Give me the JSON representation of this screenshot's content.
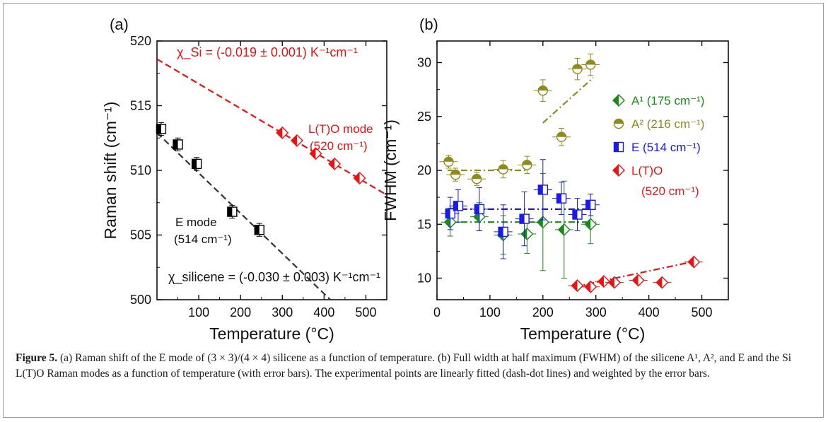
{
  "figure": {
    "caption_label": "Figure 5.",
    "caption_text": " (a) Raman shift of the E mode of (3 × 3)/(4 × 4) silicene as a function of temperature. (b) Full width at half maximum (FWHM) of the silicene A¹, A², and E and the Si L(T)O Raman modes as a function of temperature (with error bars). The experimental points are linearly fitted (dash-dot lines) and weighted by the error bars."
  },
  "chart_data": [
    {
      "panel_label": "(a)",
      "type": "scatter",
      "xlabel": "Temperature (°C)",
      "ylabel": "Raman shift (cm⁻¹)",
      "xlim": [
        0,
        550
      ],
      "ylim": [
        500,
        520
      ],
      "xticks": [
        100,
        200,
        300,
        400,
        500
      ],
      "yticks": [
        500,
        505,
        510,
        515,
        520
      ],
      "series": [
        {
          "name": "E mode (514 cm⁻¹)",
          "label_line1": "E mode",
          "label_line2": "(514 cm⁻¹)",
          "marker": "half-filled-square",
          "color": "#000000",
          "points": [
            {
              "x": 10,
              "y": 513.2,
              "yerr": 0.5
            },
            {
              "x": 50,
              "y": 512.0,
              "yerr": 0.5
            },
            {
              "x": 95,
              "y": 510.5,
              "yerr": 0.5
            },
            {
              "x": 180,
              "y": 506.8,
              "yerr": 0.5
            },
            {
              "x": 245,
              "y": 505.4,
              "yerr": 0.5
            }
          ]
        },
        {
          "name": "L(T)O mode (520 cm⁻¹)",
          "label_line1": "L(T)O mode",
          "label_line2": "(520 cm⁻¹)",
          "marker": "half-filled-diamond",
          "color": "#ee1111",
          "points": [
            {
              "x": 300,
              "y": 512.9
            },
            {
              "x": 335,
              "y": 512.3
            },
            {
              "x": 380,
              "y": 511.3
            },
            {
              "x": 425,
              "y": 510.5
            },
            {
              "x": 485,
              "y": 509.4
            }
          ]
        }
      ],
      "fits": [
        {
          "series": "E mode",
          "color": "#333333",
          "x": [
            0,
            415
          ],
          "y": [
            512.9,
            500.0
          ],
          "annotation": "χ_silicene = (-0.030 ± 0.003) K⁻¹cm⁻¹"
        },
        {
          "series": "L(T)O mode",
          "color": "#ee1111",
          "x": [
            0,
            550
          ],
          "y": [
            518.6,
            508.1
          ],
          "annotation": "χ_Si = (-0.019 ± 0.001) K⁻¹cm⁻¹"
        }
      ]
    },
    {
      "panel_label": "(b)",
      "type": "scatter",
      "xlabel": "Temperature (°C)",
      "ylabel": "FWHM (cm⁻¹)",
      "xlim": [
        0,
        550
      ],
      "ylim": [
        8,
        32
      ],
      "xticks": [
        0,
        100,
        200,
        300,
        400,
        500
      ],
      "yticks": [
        10,
        15,
        20,
        25,
        30
      ],
      "series": [
        {
          "name": "A¹ (175 cm⁻¹)",
          "marker": "half-filled-diamond",
          "color": "#1a8a1a",
          "points": [
            {
              "x": 25,
              "y": 15.2,
              "yerr": 1.3
            },
            {
              "x": 80,
              "y": 15.7,
              "yerr": 1.3
            },
            {
              "x": 125,
              "y": 14.0,
              "yerr": 1.8
            },
            {
              "x": 170,
              "y": 14.1,
              "yerr": 1.8
            },
            {
              "x": 200,
              "y": 15.2,
              "yerr": 4.5
            },
            {
              "x": 240,
              "y": 14.5,
              "yerr": 4.5
            },
            {
              "x": 290,
              "y": 15.0,
              "yerr": 1.8
            }
          ]
        },
        {
          "name": "A² (216 cm⁻¹)",
          "marker": "half-filled-circle",
          "color": "#8f8a1c",
          "points": [
            {
              "x": 22,
              "y": 20.8,
              "yerr": 0.6
            },
            {
              "x": 35,
              "y": 19.6,
              "yerr": 0.6
            },
            {
              "x": 75,
              "y": 19.2,
              "yerr": 0.6
            },
            {
              "x": 125,
              "y": 20.1,
              "yerr": 0.8
            },
            {
              "x": 170,
              "y": 20.5,
              "yerr": 0.8
            },
            {
              "x": 200,
              "y": 27.4,
              "yerr": 1.0
            },
            {
              "x": 235,
              "y": 23.1,
              "yerr": 0.8
            },
            {
              "x": 265,
              "y": 29.4,
              "yerr": 1.0
            },
            {
              "x": 290,
              "y": 29.8,
              "yerr": 1.0
            }
          ]
        },
        {
          "name": "E (514 cm⁻¹)",
          "marker": "half-filled-square",
          "color": "#1a1aee",
          "points": [
            {
              "x": 25,
              "y": 16.0,
              "yerr": 1.5
            },
            {
              "x": 40,
              "y": 16.7,
              "yerr": 1.5
            },
            {
              "x": 80,
              "y": 16.4,
              "yerr": 2.0
            },
            {
              "x": 125,
              "y": 14.3,
              "yerr": 2.5
            },
            {
              "x": 165,
              "y": 15.5,
              "yerr": 2.5
            },
            {
              "x": 200,
              "y": 18.2,
              "yerr": 2.8
            },
            {
              "x": 235,
              "y": 17.4,
              "yerr": 1.5
            },
            {
              "x": 265,
              "y": 15.9,
              "yerr": 1.5
            },
            {
              "x": 290,
              "y": 16.8,
              "yerr": 1.0
            }
          ]
        },
        {
          "name": "L(T)O (520 cm⁻¹)",
          "label_line1": "L(T)O",
          "label_line2": "(520 cm⁻¹)",
          "marker": "half-filled-diamond",
          "color": "#ee1111",
          "points": [
            {
              "x": 265,
              "y": 9.3
            },
            {
              "x": 290,
              "y": 9.2
            },
            {
              "x": 315,
              "y": 9.7
            },
            {
              "x": 335,
              "y": 9.6
            },
            {
              "x": 380,
              "y": 9.8
            },
            {
              "x": 425,
              "y": 9.6
            },
            {
              "x": 485,
              "y": 11.5
            }
          ]
        }
      ],
      "fits": [
        {
          "series": "A¹",
          "color": "#1a8a1a",
          "x": [
            20,
            300
          ],
          "y": [
            15.2,
            15.2
          ]
        },
        {
          "series": "A² low",
          "color": "#8f8a1c",
          "x": [
            20,
            170
          ],
          "y": [
            20.0,
            20.0
          ]
        },
        {
          "series": "A² high",
          "color": "#8f8a1c",
          "x": [
            200,
            295
          ],
          "y": [
            24.4,
            28.6
          ]
        },
        {
          "series": "E",
          "color": "#1a1aee",
          "x": [
            20,
            300
          ],
          "y": [
            16.4,
            16.4
          ]
        },
        {
          "series": "L(T)O",
          "color": "#ee1111",
          "x": [
            260,
            490
          ],
          "y": [
            9.2,
            11.6
          ]
        }
      ]
    }
  ]
}
